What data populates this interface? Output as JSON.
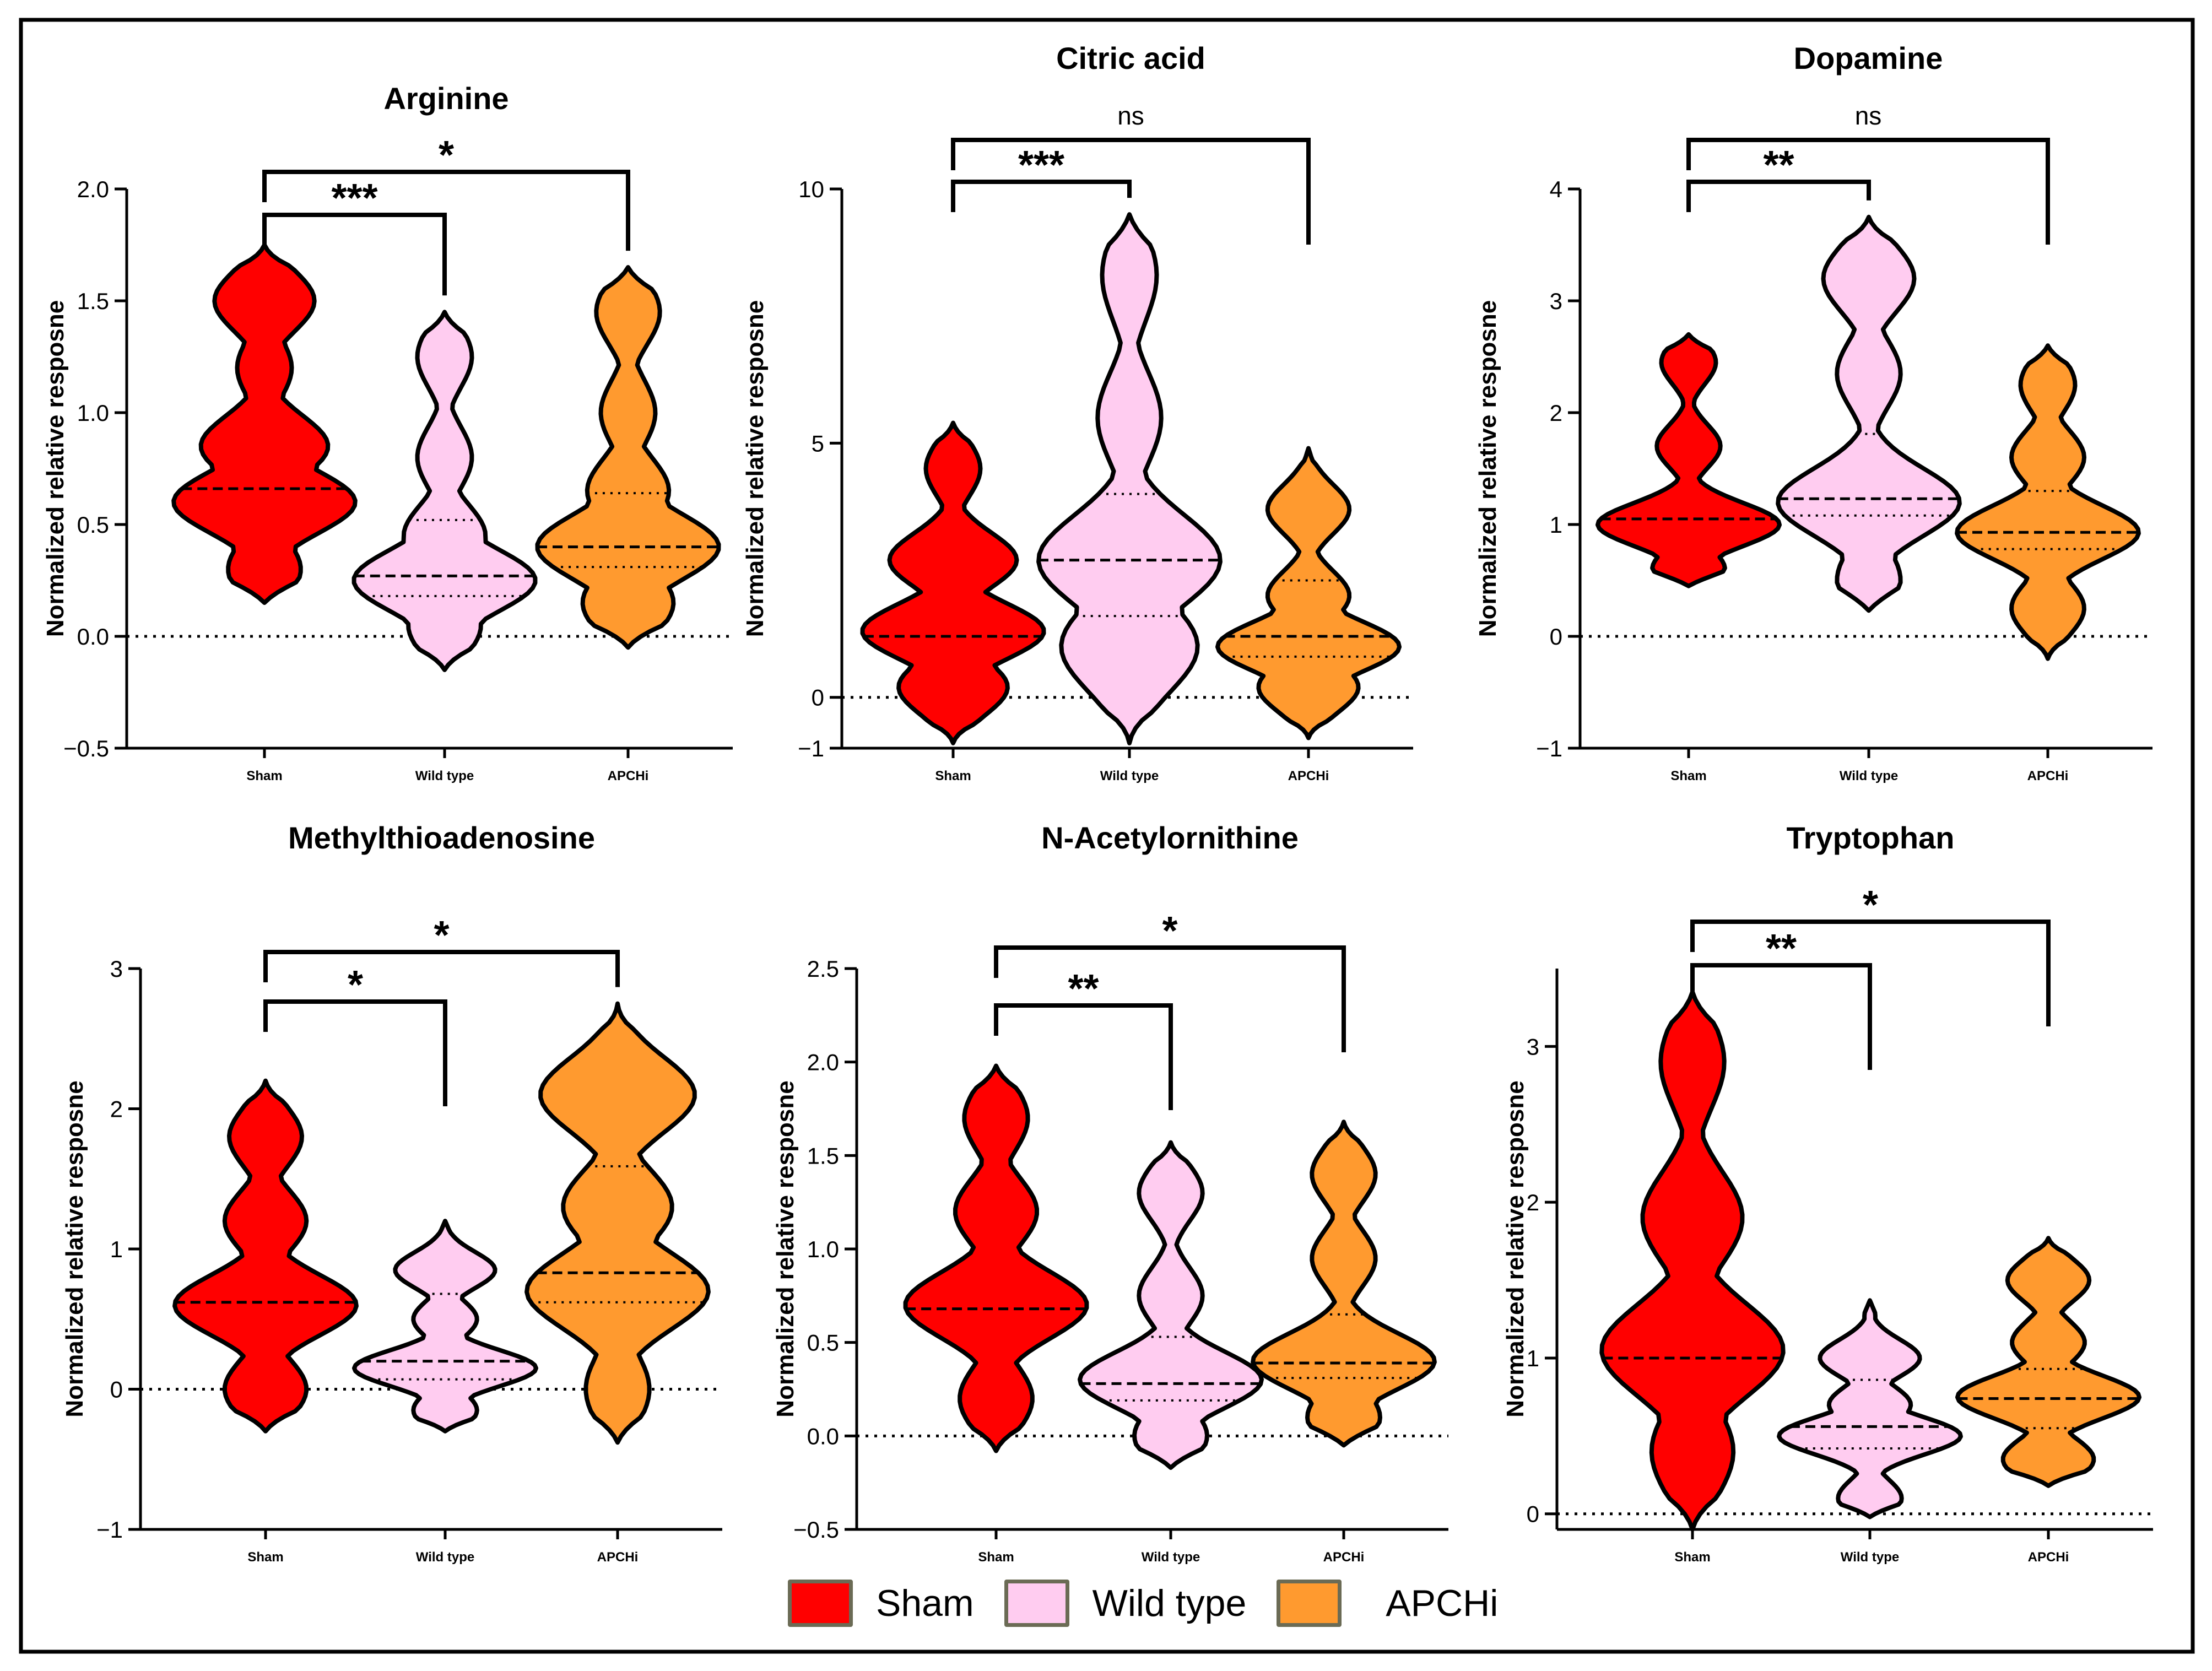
{
  "chart_data": [
    {
      "type": "violin",
      "title": "Arginine",
      "ylabel": "Normalized relative resposne",
      "ylim": [
        -0.5,
        2.0
      ],
      "yticks": [
        "−0.5",
        "0.0",
        "0.5",
        "1.0",
        "1.5",
        "2.0"
      ],
      "ytick_values": [
        -0.5,
        0.0,
        0.5,
        1.0,
        1.5,
        2.0
      ],
      "reference_line": 0,
      "categories": [
        "Sham",
        "Wild type",
        "APCHi"
      ],
      "series": [
        {
          "name": "Sham",
          "median": 0.66,
          "q1": null,
          "q3": null,
          "range": [
            0.15,
            1.75
          ],
          "peaks": [
            {
              "y": 1.5,
              "w": 0.55
            },
            {
              "y": 1.2,
              "w": 0.3
            },
            {
              "y": 0.85,
              "w": 0.7
            },
            {
              "y": 0.6,
              "w": 1.0
            },
            {
              "y": 0.3,
              "w": 0.4
            }
          ]
        },
        {
          "name": "Wild type",
          "median": 0.27,
          "q1": 0.18,
          "q3": 0.52,
          "range": [
            -0.15,
            1.45
          ],
          "peaks": [
            {
              "y": 1.25,
              "w": 0.3
            },
            {
              "y": 0.8,
              "w": 0.3
            },
            {
              "y": 0.45,
              "w": 0.45
            },
            {
              "y": 0.25,
              "w": 1.0
            },
            {
              "y": 0.05,
              "w": 0.4
            }
          ]
        },
        {
          "name": "APCHi",
          "median": 0.4,
          "q1": 0.31,
          "q3": 0.64,
          "range": [
            -0.05,
            1.65
          ],
          "peaks": [
            {
              "y": 1.45,
              "w": 0.35
            },
            {
              "y": 1.0,
              "w": 0.3
            },
            {
              "y": 0.65,
              "w": 0.45
            },
            {
              "y": 0.4,
              "w": 1.0
            },
            {
              "y": 0.15,
              "w": 0.5
            }
          ]
        }
      ],
      "comparisons": [
        {
          "from": "Sham",
          "to": "Wild type",
          "label": "***"
        },
        {
          "from": "Sham",
          "to": "APCHi",
          "label": "*"
        }
      ]
    },
    {
      "type": "violin",
      "title": "Citric acid",
      "ylabel": "Normalized relative resposne",
      "ylim": [
        -1,
        10
      ],
      "yticks": [
        "−1",
        "0",
        "5",
        "10"
      ],
      "ytick_values": [
        -1,
        0,
        5,
        10
      ],
      "reference_line": 0,
      "categories": [
        "Sham",
        "Wild type",
        "APCHi"
      ],
      "series": [
        {
          "name": "Sham",
          "median": 1.2,
          "q1": null,
          "q3": null,
          "range": [
            -0.9,
            5.4
          ],
          "peaks": [
            {
              "y": 4.5,
              "w": 0.3
            },
            {
              "y": 2.7,
              "w": 0.7
            },
            {
              "y": 1.3,
              "w": 1.0
            },
            {
              "y": 0.2,
              "w": 0.6
            }
          ]
        },
        {
          "name": "Wild type",
          "median": 2.7,
          "q1": 1.6,
          "q3": 4.0,
          "range": [
            -0.9,
            9.5
          ],
          "peaks": [
            {
              "y": 8.3,
              "w": 0.3
            },
            {
              "y": 5.5,
              "w": 0.35
            },
            {
              "y": 2.7,
              "w": 1.0
            },
            {
              "y": 1.0,
              "w": 0.75
            }
          ]
        },
        {
          "name": "APCHi",
          "median": 1.2,
          "q1": 0.8,
          "q3": 2.3,
          "range": [
            -0.8,
            4.9
          ],
          "peaks": [
            {
              "y": 3.7,
              "w": 0.45
            },
            {
              "y": 2.0,
              "w": 0.45
            },
            {
              "y": 1.0,
              "w": 1.0
            },
            {
              "y": 0.2,
              "w": 0.55
            }
          ]
        }
      ],
      "comparisons": [
        {
          "from": "Sham",
          "to": "Wild type",
          "label": "***"
        },
        {
          "from": "Sham",
          "to": "APCHi",
          "label": "ns"
        }
      ]
    },
    {
      "type": "violin",
      "title": "Dopamine",
      "ylabel": "Normalized relative resposne",
      "ylim": [
        -1,
        4
      ],
      "yticks": [
        "−1",
        "0",
        "1",
        "2",
        "3",
        "4"
      ],
      "ytick_values": [
        -1,
        0,
        1,
        2,
        3,
        4
      ],
      "reference_line": 0,
      "categories": [
        "Sham",
        "Wild type",
        "APCHi"
      ],
      "series": [
        {
          "name": "Sham",
          "median": 1.05,
          "q1": null,
          "q3": null,
          "range": [
            0.45,
            2.7
          ],
          "peaks": [
            {
              "y": 2.45,
              "w": 0.3
            },
            {
              "y": 1.7,
              "w": 0.35
            },
            {
              "y": 1.0,
              "w": 1.0
            },
            {
              "y": 0.6,
              "w": 0.4
            }
          ]
        },
        {
          "name": "Wild type",
          "median": 1.23,
          "q1": 1.08,
          "q3": 1.81,
          "range": [
            0.23,
            3.75
          ],
          "peaks": [
            {
              "y": 3.2,
              "w": 0.5
            },
            {
              "y": 2.35,
              "w": 0.35
            },
            {
              "y": 1.2,
              "w": 1.0
            },
            {
              "y": 0.5,
              "w": 0.35
            }
          ]
        },
        {
          "name": "APCHi",
          "median": 0.93,
          "q1": 0.78,
          "q3": 1.3,
          "range": [
            -0.2,
            2.6
          ],
          "peaks": [
            {
              "y": 2.25,
              "w": 0.3
            },
            {
              "y": 1.6,
              "w": 0.4
            },
            {
              "y": 0.93,
              "w": 1.0
            },
            {
              "y": 0.25,
              "w": 0.4
            }
          ]
        }
      ],
      "comparisons": [
        {
          "from": "Sham",
          "to": "Wild type",
          "label": "**"
        },
        {
          "from": "Sham",
          "to": "APCHi",
          "label": "ns"
        }
      ]
    },
    {
      "type": "violin",
      "title": "Methylthioadenosine",
      "ylabel": "Normalized relative resposne",
      "ylim": [
        -1,
        3
      ],
      "yticks": [
        "−1",
        "0",
        "1",
        "2",
        "3"
      ],
      "ytick_values": [
        -1,
        0,
        1,
        2,
        3
      ],
      "reference_line": 0,
      "categories": [
        "Sham",
        "Wild type",
        "APCHi"
      ],
      "series": [
        {
          "name": "Sham",
          "median": 0.62,
          "q1": null,
          "q3": null,
          "range": [
            -0.3,
            2.2
          ],
          "peaks": [
            {
              "y": 1.8,
              "w": 0.4
            },
            {
              "y": 1.2,
              "w": 0.45
            },
            {
              "y": 0.6,
              "w": 1.0
            },
            {
              "y": 0.0,
              "w": 0.45
            }
          ]
        },
        {
          "name": "Wild type",
          "median": 0.2,
          "q1": 0.07,
          "q3": 0.68,
          "range": [
            -0.3,
            1.2
          ],
          "peaks": [
            {
              "y": 0.85,
              "w": 0.55
            },
            {
              "y": 0.5,
              "w": 0.35
            },
            {
              "y": 0.15,
              "w": 1.0
            },
            {
              "y": -0.15,
              "w": 0.35
            }
          ]
        },
        {
          "name": "APCHi",
          "median": 0.83,
          "q1": 0.62,
          "q3": 1.59,
          "range": [
            -0.38,
            2.75
          ],
          "peaks": [
            {
              "y": 2.1,
              "w": 0.85
            },
            {
              "y": 1.3,
              "w": 0.6
            },
            {
              "y": 0.7,
              "w": 1.0
            },
            {
              "y": 0.0,
              "w": 0.35
            }
          ]
        }
      ],
      "comparisons": [
        {
          "from": "Sham",
          "to": "Wild type",
          "label": "*"
        },
        {
          "from": "Sham",
          "to": "APCHi",
          "label": "*"
        }
      ]
    },
    {
      "type": "violin",
      "title": "N-Acetylornithine",
      "ylabel": "Normalized relative resposne",
      "ylim": [
        -0.5,
        2.5
      ],
      "yticks": [
        "−0.5",
        "0.0",
        "0.5",
        "1.0",
        "1.5",
        "2.0",
        "2.5"
      ],
      "ytick_values": [
        -0.5,
        0.0,
        0.5,
        1.0,
        1.5,
        2.0,
        2.5
      ],
      "reference_line": 0,
      "categories": [
        "Sham",
        "Wild type",
        "APCHi"
      ],
      "series": [
        {
          "name": "Sham",
          "median": 0.68,
          "q1": null,
          "q3": null,
          "range": [
            -0.08,
            1.98
          ],
          "peaks": [
            {
              "y": 1.7,
              "w": 0.35
            },
            {
              "y": 1.2,
              "w": 0.45
            },
            {
              "y": 0.7,
              "w": 1.0
            },
            {
              "y": 0.2,
              "w": 0.4
            }
          ]
        },
        {
          "name": "Wild type",
          "median": 0.28,
          "q1": 0.19,
          "q3": 0.53,
          "range": [
            -0.17,
            1.57
          ],
          "peaks": [
            {
              "y": 1.3,
              "w": 0.35
            },
            {
              "y": 0.75,
              "w": 0.35
            },
            {
              "y": 0.3,
              "w": 1.0
            },
            {
              "y": 0.0,
              "w": 0.4
            }
          ]
        },
        {
          "name": "APCHi",
          "median": 0.39,
          "q1": 0.31,
          "q3": 0.65,
          "range": [
            -0.05,
            1.68
          ],
          "peaks": [
            {
              "y": 1.4,
              "w": 0.35
            },
            {
              "y": 0.95,
              "w": 0.35
            },
            {
              "y": 0.4,
              "w": 1.0
            },
            {
              "y": 0.1,
              "w": 0.4
            }
          ]
        }
      ],
      "comparisons": [
        {
          "from": "Sham",
          "to": "Wild type",
          "label": "**"
        },
        {
          "from": "Sham",
          "to": "APCHi",
          "label": "*"
        }
      ]
    },
    {
      "type": "violin",
      "title": "Tryptophan",
      "ylabel": "Normalized relative resposne",
      "ylim": [
        -0.1,
        3.5
      ],
      "yticks": [
        "0",
        "1",
        "2",
        "3"
      ],
      "ytick_values": [
        0,
        1,
        2,
        3
      ],
      "reference_line": 0,
      "categories": [
        "Sham",
        "Wild type",
        "APCHi"
      ],
      "series": [
        {
          "name": "Sham",
          "median": 1.0,
          "q1": null,
          "q3": null,
          "range": [
            -0.1,
            3.35
          ],
          "peaks": [
            {
              "y": 2.9,
              "w": 0.35
            },
            {
              "y": 1.9,
              "w": 0.55
            },
            {
              "y": 1.05,
              "w": 1.0
            },
            {
              "y": 0.4,
              "w": 0.45
            }
          ]
        },
        {
          "name": "Wild type",
          "median": 0.56,
          "q1": 0.42,
          "q3": 0.86,
          "range": [
            -0.02,
            1.37
          ],
          "peaks": [
            {
              "y": 1.0,
              "w": 0.55
            },
            {
              "y": 0.7,
              "w": 0.45
            },
            {
              "y": 0.5,
              "w": 1.0
            },
            {
              "y": 0.1,
              "w": 0.35
            }
          ]
        },
        {
          "name": "APCHi",
          "median": 0.74,
          "q1": 0.55,
          "q3": 0.93,
          "range": [
            0.18,
            1.77
          ],
          "peaks": [
            {
              "y": 1.5,
              "w": 0.45
            },
            {
              "y": 1.1,
              "w": 0.4
            },
            {
              "y": 0.75,
              "w": 1.0
            },
            {
              "y": 0.35,
              "w": 0.5
            }
          ]
        }
      ],
      "comparisons": [
        {
          "from": "Sham",
          "to": "Wild type",
          "label": "**"
        },
        {
          "from": "Sham",
          "to": "APCHi",
          "label": "*"
        }
      ]
    }
  ],
  "legend": [
    {
      "label": "Sham",
      "color": "#ff0000"
    },
    {
      "label": "Wild type",
      "color": "#ffccf0"
    },
    {
      "label": "APCHi",
      "color": "#ff9a2f"
    }
  ],
  "colors": {
    "Sham": "#ff0000",
    "Wild type": "#ffccf0",
    "APCHi": "#ff9a2f"
  }
}
